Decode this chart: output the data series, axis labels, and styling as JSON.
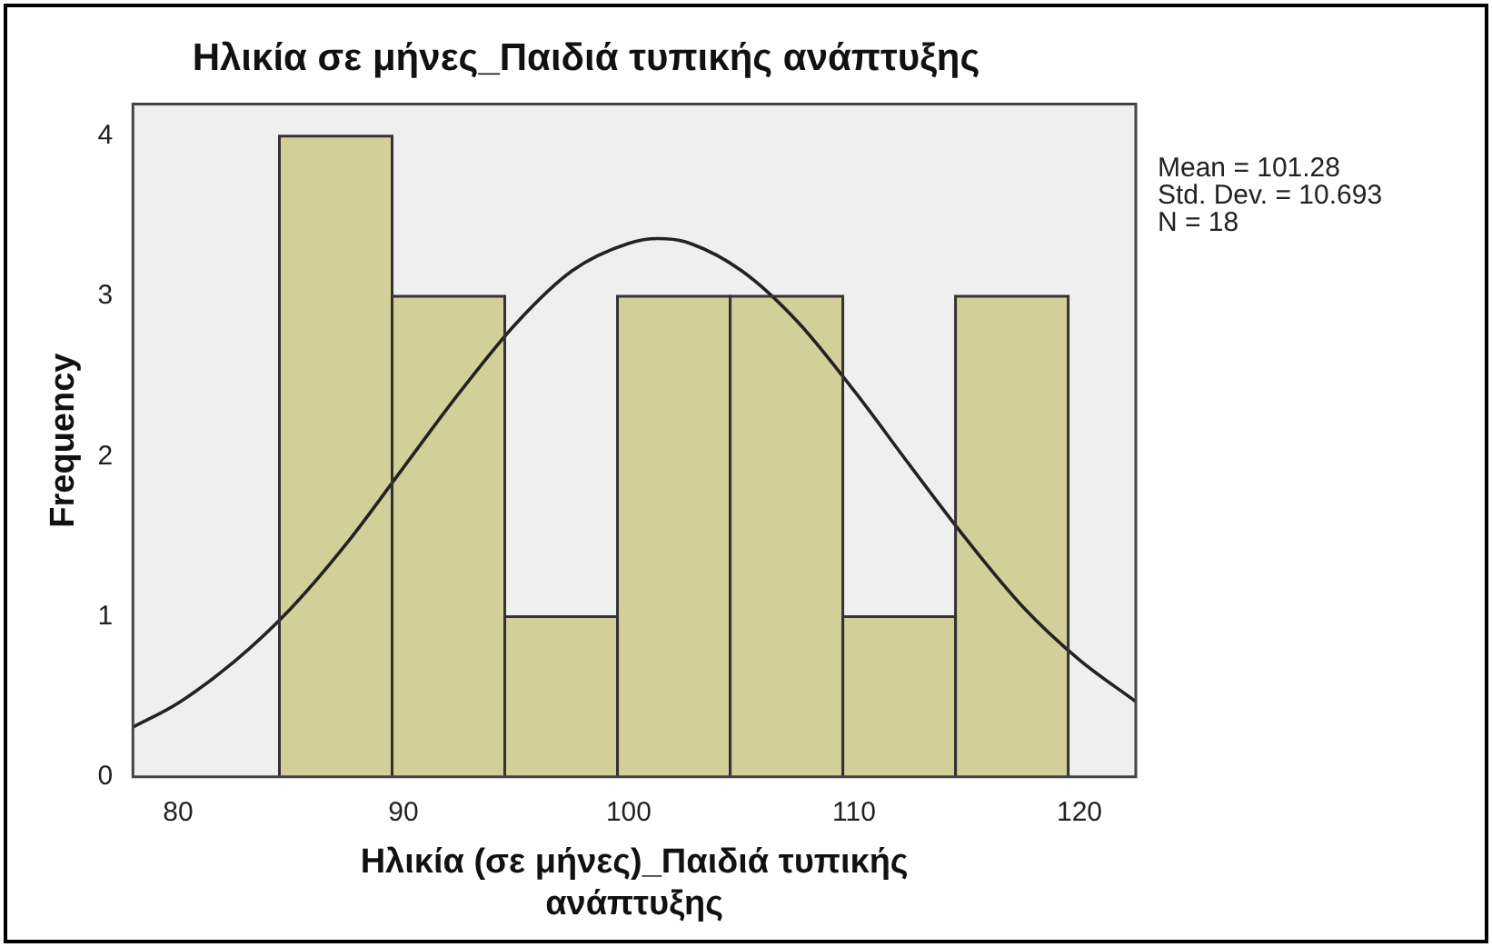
{
  "chart_data": {
    "type": "histogram",
    "title": "Ηλικία σε μήνες_Παιδιά τυπικής ανάπτυξης",
    "xlabel": "Ηλικία (σε μήνες)_Παιδιά τυπικής ανάπτυξης",
    "ylabel": "Frequency",
    "bins": [
      84.5,
      89.5,
      94.5,
      99.5,
      104.5,
      109.5,
      114.5,
      119.5
    ],
    "values": [
      4,
      3,
      1,
      3,
      3,
      1,
      3
    ],
    "color": "#d3cf98",
    "series": [
      {
        "type": "line",
        "color": "#222222",
        "x": [
          78,
          80,
          82.5,
          85,
          87.5,
          90,
          92.5,
          95,
          97.5,
          100,
          101.28,
          102.5,
          105,
          107.5,
          110,
          112.5,
          115,
          117.5,
          120,
          122.5
        ],
        "values": [
          0.31,
          0.46,
          0.72,
          1.05,
          1.46,
          1.93,
          2.4,
          2.83,
          3.16,
          3.33,
          3.36,
          3.34,
          3.16,
          2.84,
          2.41,
          1.94,
          1.48,
          1.06,
          0.73,
          0.47
        ]
      }
    ],
    "xlim": [
      78,
      122.5
    ],
    "xticks": [
      80,
      90,
      100,
      110,
      120
    ],
    "ylim": [
      0,
      4.2
    ],
    "yticks": [
      0,
      1,
      2,
      3,
      4
    ],
    "grid": false,
    "legend": false,
    "marker": "none",
    "annotations": [
      "Mean = 101.28",
      "Std. Dev. = 10.693",
      "N = 18"
    ]
  }
}
